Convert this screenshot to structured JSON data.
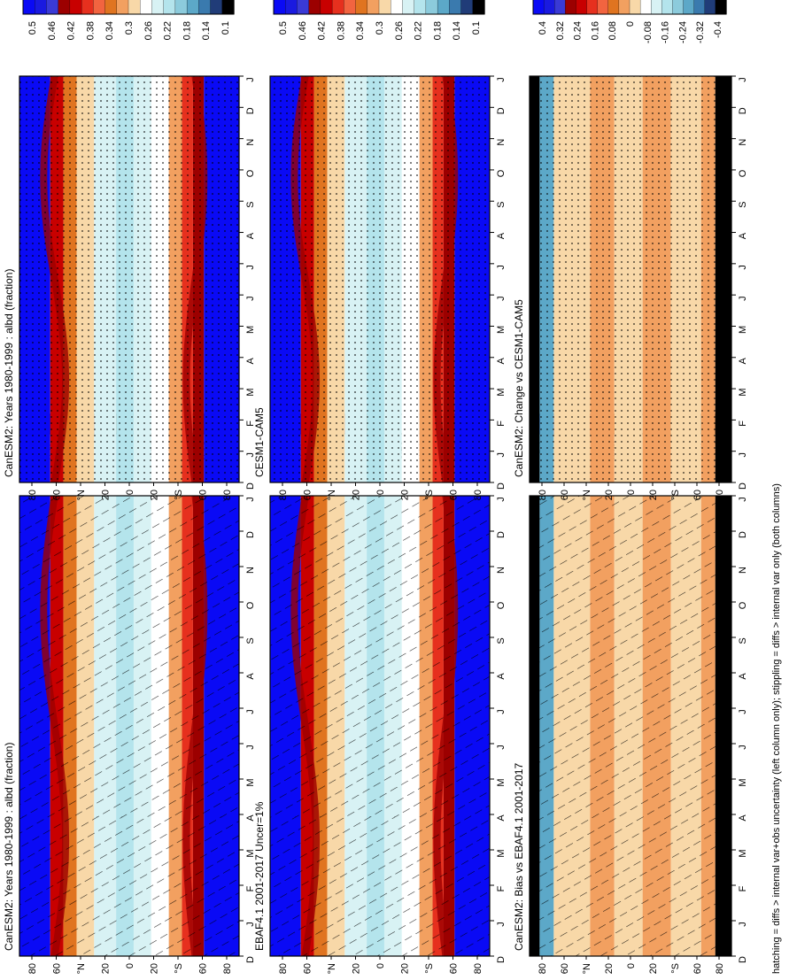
{
  "figure": {
    "footnote": "hatching = diffs > internal var+obs uncertainty (left column only); stippling = diffs > internal var only (both columns)"
  },
  "colors": {
    "abs_scale": [
      "#0a0af5",
      "#1a1ae0",
      "#3a3ad6",
      "#9c0000",
      "#c80000",
      "#e6301e",
      "#f26440",
      "#e07420",
      "#f2a060",
      "#f8d8a8",
      "#ffffff",
      "#d8f2f4",
      "#b4e4ec",
      "#8ccbdc",
      "#5ca8c8",
      "#3a7aae",
      "#203c78",
      "#000000"
    ],
    "diff_scale": [
      "#0a0af5",
      "#1a1ae0",
      "#3a3ad6",
      "#9c0000",
      "#c80000",
      "#e6301e",
      "#f26440",
      "#e07420",
      "#f2a060",
      "#f8d8a8",
      "#ffffff",
      "#d8f2f4",
      "#b4e4ec",
      "#8ccbdc",
      "#5ca8c8",
      "#3a7aae",
      "#203c78",
      "#000000"
    ]
  },
  "chart_data": [
    {
      "type": "heatmap",
      "title": "CanESM2: Years 1980-1999 : albd (fraction)",
      "months": [
        "D",
        "J",
        "F",
        "M",
        "A",
        "M",
        "J",
        "J",
        "A",
        "S",
        "O",
        "N",
        "D",
        "J"
      ],
      "lat_ticks": [
        "80",
        "60",
        "°N",
        "20",
        "0",
        "20",
        "°S",
        "60",
        "80"
      ],
      "ylim": [
        -90,
        90
      ],
      "colorbar": [
        "0.5",
        "0.46",
        "0.42",
        "0.38",
        "0.34",
        "0.3",
        "0.26",
        "0.22",
        "0.18",
        "0.14",
        "0.1"
      ],
      "overlay": "hatch"
    },
    {
      "type": "heatmap",
      "title": "CanESM2: Years 1980-1999 : albd (fraction)",
      "months": [
        "D",
        "J",
        "F",
        "M",
        "A",
        "M",
        "J",
        "J",
        "A",
        "S",
        "O",
        "N",
        "D",
        "J"
      ],
      "lat_ticks": [
        "80",
        "60",
        "°N",
        "20",
        "0",
        "20",
        "°S",
        "60",
        "80"
      ],
      "ylim": [
        -90,
        90
      ],
      "colorbar": [
        "0.5",
        "0.46",
        "0.42",
        "0.38",
        "0.34",
        "0.3",
        "0.26",
        "0.22",
        "0.18",
        "0.14",
        "0.1"
      ],
      "overlay": "stipple"
    },
    {
      "type": "heatmap",
      "title": "EBAF4.1 2001-2017 Uncer=1%",
      "months": [
        "D",
        "J",
        "F",
        "M",
        "A",
        "M",
        "J",
        "J",
        "A",
        "S",
        "O",
        "N",
        "D",
        "J"
      ],
      "lat_ticks": [
        "80",
        "60",
        "°N",
        "20",
        "0",
        "20",
        "°S",
        "60",
        "80"
      ],
      "ylim": [
        -90,
        90
      ],
      "colorbar": [
        "0.5",
        "0.46",
        "0.42",
        "0.38",
        "0.34",
        "0.3",
        "0.26",
        "0.22",
        "0.18",
        "0.14",
        "0.1"
      ],
      "overlay": "hatch"
    },
    {
      "type": "heatmap",
      "title": "CESM1-CAM5",
      "months": [
        "D",
        "J",
        "F",
        "M",
        "A",
        "M",
        "J",
        "J",
        "A",
        "S",
        "O",
        "N",
        "D",
        "J"
      ],
      "lat_ticks": [
        "80",
        "60",
        "°N",
        "20",
        "0",
        "20",
        "°S",
        "60",
        "80"
      ],
      "ylim": [
        -90,
        90
      ],
      "colorbar": [
        "0.5",
        "0.46",
        "0.42",
        "0.38",
        "0.34",
        "0.3",
        "0.26",
        "0.22",
        "0.18",
        "0.14",
        "0.1"
      ],
      "overlay": "stipple"
    },
    {
      "type": "heatmap",
      "title": "CanESM2: Bias vs EBAF4.1 2001-2017",
      "months": [
        "D",
        "J",
        "F",
        "M",
        "A",
        "M",
        "J",
        "J",
        "A",
        "S",
        "O",
        "N",
        "D",
        "J"
      ],
      "lat_ticks": [
        "80",
        "60",
        "°N",
        "20",
        "0",
        "20",
        "°S",
        "60",
        "80"
      ],
      "ylim": [
        -90,
        90
      ],
      "colorbar": [
        "0.4",
        "0.32",
        "0.24",
        "0.16",
        "0.08",
        "0",
        "-0.08",
        "-0.16",
        "-0.24",
        "-0.32",
        "-0.4"
      ],
      "overlay": "hatch"
    },
    {
      "type": "heatmap",
      "title": "CanESM2: Change vs CESM1-CAM5",
      "months": [
        "D",
        "J",
        "F",
        "M",
        "A",
        "M",
        "J",
        "J",
        "A",
        "S",
        "O",
        "N",
        "D",
        "J"
      ],
      "lat_ticks": [
        "80",
        "60",
        "°N",
        "20",
        "0",
        "20",
        "°S",
        "60",
        "80"
      ],
      "ylim": [
        -90,
        90
      ],
      "colorbar": [
        "0.4",
        "0.32",
        "0.24",
        "0.16",
        "0.08",
        "0",
        "-0.08",
        "-0.16",
        "-0.24",
        "-0.32",
        "-0.4"
      ],
      "overlay": "stipple"
    }
  ]
}
